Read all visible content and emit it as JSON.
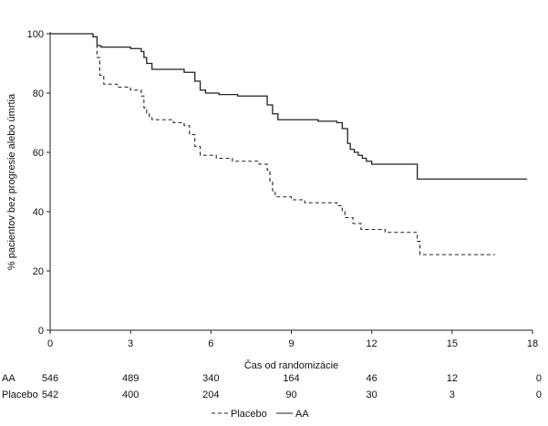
{
  "chart_data": {
    "type": "line",
    "title": "",
    "xlabel": "Čas od randomizácie",
    "ylabel": "% pacientov bez progresie alebo úmrtia",
    "xlim": [
      0,
      18
    ],
    "ylim": [
      0,
      100
    ],
    "x_ticks": [
      0,
      3,
      6,
      9,
      12,
      15,
      18
    ],
    "x_tick_labels": [
      "0",
      "3",
      "6",
      "9",
      "12",
      "15",
      "18"
    ],
    "y_ticks": [
      0,
      20,
      40,
      60,
      80,
      100
    ],
    "y_tick_labels": [
      "0",
      "20",
      "40",
      "60",
      "80",
      "100"
    ],
    "grid": false,
    "legend_position": "bottom-center",
    "series": [
      {
        "name": "Placebo",
        "line_style": "dashed",
        "color": "#222222",
        "x": [
          0,
          1.6,
          1.75,
          1.85,
          2.0,
          2.5,
          3.0,
          3.4,
          3.5,
          3.6,
          3.7,
          3.8,
          4.6,
          5.0,
          5.2,
          5.4,
          5.6,
          6.2,
          6.8,
          7.8,
          8.1,
          8.2,
          8.3,
          8.4,
          9.0,
          9.5,
          10.0,
          10.7,
          10.9,
          11.0,
          11.3,
          11.6,
          12.5,
          13.7,
          13.8,
          16.6
        ],
        "y": [
          100,
          99,
          92,
          86,
          83,
          82,
          81,
          79,
          75,
          73,
          72,
          71,
          70,
          69,
          66,
          62,
          59,
          58,
          57,
          56,
          54,
          50,
          47,
          45,
          44,
          43,
          43,
          42,
          40,
          38,
          36,
          34,
          33,
          30,
          25.5,
          25.5
        ]
      },
      {
        "name": "AA",
        "line_style": "solid",
        "color": "#222222",
        "x": [
          0,
          1.0,
          1.6,
          1.75,
          1.9,
          2.5,
          3.0,
          3.4,
          3.5,
          3.6,
          3.8,
          5.0,
          5.4,
          5.6,
          5.8,
          6.3,
          7.0,
          8.1,
          8.3,
          8.5,
          9.4,
          10.0,
          10.7,
          10.9,
          11.1,
          11.2,
          11.35,
          11.5,
          11.65,
          11.8,
          12.0,
          12.5,
          13.6,
          13.7,
          17.8
        ],
        "y": [
          100,
          100,
          99,
          96,
          95.5,
          95.5,
          95,
          94,
          92,
          90,
          88,
          87,
          84,
          81,
          80,
          79.5,
          79,
          76,
          73,
          71,
          71,
          70.5,
          70,
          68,
          63,
          61,
          60,
          59,
          58,
          57,
          56,
          56,
          56,
          51,
          51
        ]
      }
    ],
    "risk_table": {
      "rows": [
        {
          "label": "AA",
          "values": [
            "546",
            "489",
            "340",
            "164",
            "46",
            "12",
            "0"
          ]
        },
        {
          "label": "Placebo",
          "values": [
            "542",
            "400",
            "204",
            "90",
            "30",
            "3",
            "0"
          ]
        }
      ],
      "times": [
        0,
        3,
        6,
        9,
        12,
        15,
        18
      ]
    },
    "legend": [
      {
        "label": "Placebo",
        "line_style": "dashed"
      },
      {
        "label": "AA",
        "line_style": "solid"
      }
    ]
  }
}
